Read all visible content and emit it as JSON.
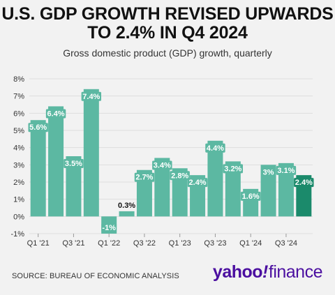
{
  "chart_data": {
    "type": "bar",
    "title_lines": [
      "U.S. GDP GROWTH REVISED UPWARDS",
      "TO 2.4% IN Q4 2024"
    ],
    "subtitle": "Gross domestic product (GDP) growth, quarterly",
    "xlabel": "",
    "ylabel": "",
    "ylim": [
      -1,
      8
    ],
    "yticks": [
      "-1%",
      "0%",
      "1%",
      "2%",
      "3%",
      "4%",
      "5%",
      "6%",
      "7%",
      "8%"
    ],
    "x_tick_labels": [
      "Q1 '21",
      "Q3 '21",
      "Q1 '22",
      "Q3 '22",
      "Q1 '23",
      "Q3 '23",
      "Q1 '24",
      "Q3 '24"
    ],
    "categories": [
      "Q1 '21",
      "Q2 '21",
      "Q3 '21",
      "Q4 '21",
      "Q1 '22",
      "Q2 '22",
      "Q3 '22",
      "Q4 '22",
      "Q1 '23",
      "Q2 '23",
      "Q3 '23",
      "Q4 '23",
      "Q1 '24",
      "Q2 '24",
      "Q3 '24",
      "Q4 '24"
    ],
    "values": [
      5.6,
      6.4,
      3.5,
      7.4,
      -1,
      0.3,
      2.7,
      3.4,
      2.8,
      2.4,
      4.4,
      3.2,
      1.6,
      3,
      3.1,
      2.4
    ],
    "data_labels": [
      "5.6%",
      "6.4%",
      "3.5%",
      "7.4%",
      "-1%",
      "0.3%",
      "2.7%",
      "3.4%",
      "2.8%",
      "2.4%",
      "4.4%",
      "3.2%",
      "1.6%",
      "3%",
      "3.1%",
      "2.4%"
    ],
    "grid": true,
    "colors": {
      "bar": "#5cb8a2",
      "highlight": "#1b8a6b",
      "grid": "#dddddd",
      "outside_label": "#111111"
    }
  },
  "footer": {
    "source": "SOURCE: BUREAU OF ECONOMIC ANALYSIS",
    "logo_yahoo": "yahoo",
    "logo_slash": "!",
    "logo_finance": "finance"
  }
}
